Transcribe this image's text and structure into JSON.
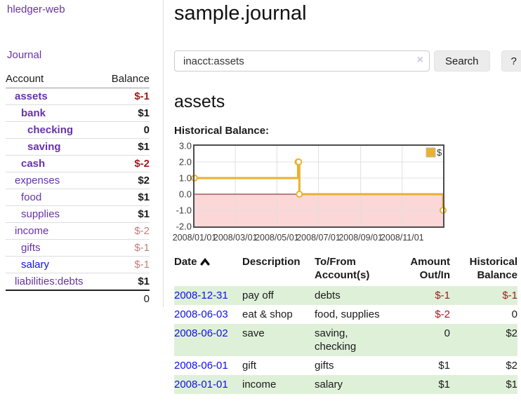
{
  "palette": {
    "link_purple": "#6633a8",
    "link_blue": "#0f0fe8",
    "negative_red": "#9e1b1b",
    "dimmed_negative": "#c27d7c",
    "row_green": "#dff0d8",
    "series_gold": "#e9b12e"
  },
  "sidebar": {
    "brand": "hledger-web",
    "journal_label": "Journal",
    "accounts_table": {
      "headers": {
        "account": "Account",
        "balance": "Balance"
      },
      "rows": [
        {
          "name": "assets",
          "balance": "$-1",
          "level": 0,
          "bold": true,
          "dimmed": false,
          "blue": false
        },
        {
          "name": "bank",
          "balance": "$1",
          "level": 1,
          "bold": true,
          "dimmed": false,
          "blue": false
        },
        {
          "name": "checking",
          "balance": "0",
          "level": 2,
          "bold": true,
          "dimmed": false,
          "blue": false
        },
        {
          "name": "saving",
          "balance": "$1",
          "level": 2,
          "bold": true,
          "dimmed": false,
          "blue": false
        },
        {
          "name": "cash",
          "balance": "$-2",
          "level": 1,
          "bold": true,
          "dimmed": false,
          "blue": false
        },
        {
          "name": "expenses",
          "balance": "$2",
          "level": 0,
          "bold": false,
          "dimmed": false,
          "blue": false
        },
        {
          "name": "food",
          "balance": "$1",
          "level": 1,
          "bold": false,
          "dimmed": false,
          "blue": false
        },
        {
          "name": "supplies",
          "balance": "$1",
          "level": 1,
          "bold": false,
          "dimmed": false,
          "blue": false
        },
        {
          "name": "income",
          "balance": "$-2",
          "level": 0,
          "bold": false,
          "dimmed": true,
          "blue": false
        },
        {
          "name": "gifts",
          "balance": "$-1",
          "level": 1,
          "bold": false,
          "dimmed": true,
          "blue": false
        },
        {
          "name": "salary",
          "balance": "$-1",
          "level": 1,
          "bold": false,
          "dimmed": true,
          "blue": true
        },
        {
          "name": "liabilities:debts",
          "balance": "$1",
          "level": 0,
          "bold": false,
          "dimmed": false,
          "blue": false
        }
      ],
      "total": "0"
    }
  },
  "header": {
    "title": "sample.journal"
  },
  "search": {
    "value": "inacct:assets",
    "clear_icon": "×",
    "button_label": "Search",
    "help_label": "?"
  },
  "account_page": {
    "heading": "assets",
    "chart_label": "Historical Balance:"
  },
  "chart_data": {
    "type": "line",
    "style": "step",
    "title": "Historical Balance:",
    "series": [
      {
        "name": "$",
        "color": "#e9b12e",
        "points": [
          [
            "2008-01-01",
            1
          ],
          [
            "2008-06-01",
            2
          ],
          [
            "2008-06-02",
            2
          ],
          [
            "2008-06-03",
            0
          ],
          [
            "2008-12-31",
            -1
          ]
        ]
      }
    ],
    "x_range": [
      "2008-01-01",
      "2008-12-31"
    ],
    "x_ticks": [
      "2008/01/01",
      "2008/03/01",
      "2008/05/01",
      "2008/07/01",
      "2008/09/01",
      "2008/11/01"
    ],
    "y_ticks": [
      3.0,
      2.0,
      1.0,
      0.0,
      -1.0,
      -2.0
    ],
    "ylim": [
      -2,
      3
    ],
    "grid": true,
    "legend_position": "top-right",
    "negative_region_color": "#fbd7d7",
    "zero_line_color": "#7a1010",
    "grid_color": "#e0e0e0",
    "frame_color": "#4d4d4d"
  },
  "register": {
    "headers": {
      "date": "Date",
      "description": "Description",
      "tofrom": "To/From Account(s)",
      "amount": "Amount Out/In",
      "balance": "Historical Balance"
    },
    "sort": {
      "column": "date",
      "direction": "ascending"
    },
    "rows": [
      {
        "date": "2008-12-31",
        "description": "pay off",
        "accounts": "debts",
        "amount": "$-1",
        "balance": "$-1"
      },
      {
        "date": "2008-06-03",
        "description": "eat & shop",
        "accounts": "food, supplies",
        "amount": "$-2",
        "balance": "0"
      },
      {
        "date": "2008-06-02",
        "description": "save",
        "accounts": "saving, checking",
        "amount": "0",
        "balance": "$2"
      },
      {
        "date": "2008-06-01",
        "description": "gift",
        "accounts": "gifts",
        "amount": "$1",
        "balance": "$2"
      },
      {
        "date": "2008-01-01",
        "description": "income",
        "accounts": "salary",
        "amount": "$1",
        "balance": "$1"
      }
    ]
  }
}
